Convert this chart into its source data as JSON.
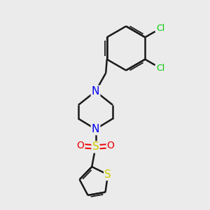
{
  "background_color": "#ebebeb",
  "bond_color": "#1a1a1a",
  "bond_width": 1.8,
  "atom_colors": {
    "N": "#0000ee",
    "S_sulfonyl": "#cccc00",
    "S_thiophene": "#cccc00",
    "O": "#ee0000",
    "Cl": "#00cc00"
  },
  "font_size_N": 11,
  "font_size_S": 11,
  "font_size_O": 10,
  "font_size_Cl": 9
}
